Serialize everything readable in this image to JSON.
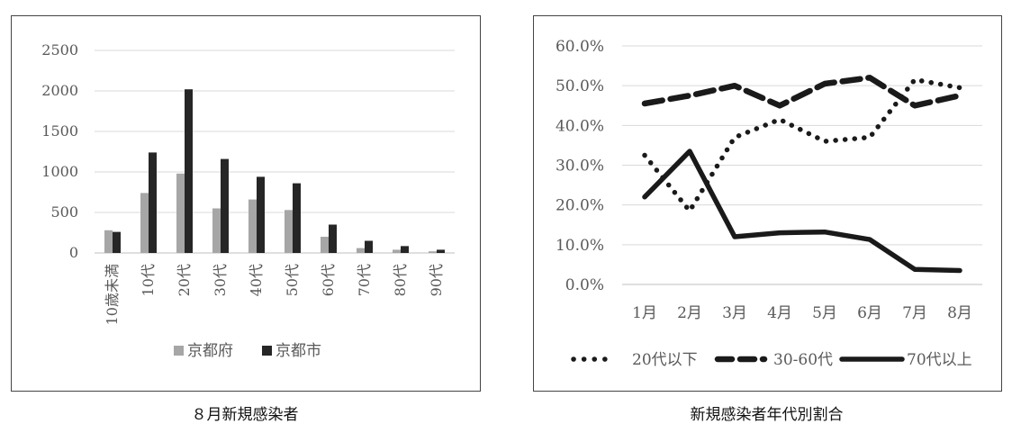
{
  "captions": {
    "left": "８月新規感染者",
    "right": "新規感染者年代別割合"
  },
  "colors": {
    "kyoto_pref": "#a6a6a6",
    "kyoto_city": "#262626",
    "grid": "#d9d9d9",
    "axis": "#bfbfbf",
    "line": "#1a1a1a"
  },
  "chart_data": [
    {
      "type": "bar",
      "title": "",
      "categories": [
        "10歳未満",
        "10代",
        "20代",
        "30代",
        "40代",
        "50代",
        "60代",
        "70代",
        "80代",
        "90代"
      ],
      "series": [
        {
          "name": "京都府",
          "values": [
            280,
            740,
            980,
            550,
            660,
            530,
            200,
            60,
            40,
            20
          ]
        },
        {
          "name": "京都市",
          "values": [
            260,
            1240,
            2020,
            1160,
            940,
            860,
            350,
            150,
            85,
            40
          ]
        }
      ],
      "yticks": [
        "0",
        "500",
        "1000",
        "1500",
        "2000",
        "2500"
      ],
      "ylim": [
        0,
        2500
      ],
      "grid": true,
      "legend": "bottom"
    },
    {
      "type": "line",
      "title": "",
      "categories": [
        "1月",
        "2月",
        "3月",
        "4月",
        "5月",
        "6月",
        "7月",
        "8月"
      ],
      "series": [
        {
          "name": "20代以下",
          "style": "dotted",
          "values": [
            32.5,
            18.5,
            37.0,
            41.5,
            36.0,
            37.0,
            51.5,
            49.5
          ]
        },
        {
          "name": "30-60代",
          "style": "dashed",
          "values": [
            45.5,
            47.5,
            50.0,
            45.0,
            50.5,
            52.0,
            45.0,
            47.5
          ]
        },
        {
          "name": "70代以上",
          "style": "solid",
          "values": [
            22.0,
            33.5,
            12.0,
            13.0,
            13.2,
            11.3,
            3.8,
            3.5
          ]
        }
      ],
      "yticks": [
        "0.0%",
        "10.0%",
        "20.0%",
        "30.0%",
        "40.0%",
        "50.0%",
        "60.0%"
      ],
      "ylim": [
        0,
        60
      ],
      "grid": true,
      "legend": "bottom"
    }
  ]
}
